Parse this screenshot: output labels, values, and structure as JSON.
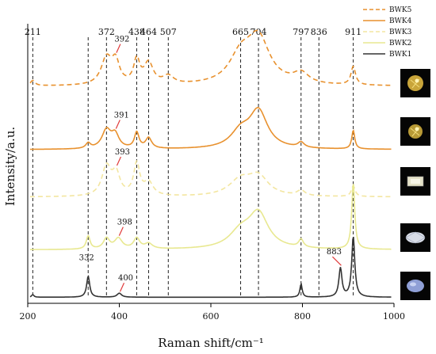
{
  "chart_data": {
    "type": "line",
    "xlabel": "Raman shift/cm⁻¹",
    "ylabel": "Intensity/a.u.",
    "xlim": [
      200,
      1000
    ],
    "x_ticks": [
      200,
      400,
      600,
      800,
      1000
    ],
    "grid": false,
    "legend_position": "top-right",
    "reference_lines": [
      211,
      332,
      372,
      438,
      464,
      507,
      665,
      704,
      797,
      836,
      911
    ],
    "top_labels": [
      "211",
      "372",
      "438",
      "464",
      "507",
      "665",
      "704",
      "797",
      "836",
      "911"
    ],
    "series": [
      {
        "name": "BWK5",
        "color": "#e8912e",
        "dash": true,
        "offset": 0.8,
        "peaks": [
          [
            211,
            0.02,
            6
          ],
          [
            372,
            0.1,
            14
          ],
          [
            392,
            0.08,
            10
          ],
          [
            438,
            0.09,
            8
          ],
          [
            464,
            0.08,
            12
          ],
          [
            507,
            0.03,
            14
          ],
          [
            665,
            0.1,
            30
          ],
          [
            704,
            0.17,
            30
          ],
          [
            797,
            0.04,
            20
          ],
          [
            911,
            0.07,
            6
          ]
        ],
        "callouts": [
          {
            "x": 392,
            "label": "392"
          }
        ]
      },
      {
        "name": "BWK4",
        "color": "#e8912e",
        "dash": false,
        "offset": 0.56,
        "peaks": [
          [
            332,
            0.02,
            6
          ],
          [
            372,
            0.07,
            12
          ],
          [
            391,
            0.05,
            10
          ],
          [
            438,
            0.06,
            6
          ],
          [
            464,
            0.04,
            8
          ],
          [
            665,
            0.06,
            26
          ],
          [
            704,
            0.14,
            24
          ],
          [
            797,
            0.02,
            8
          ],
          [
            911,
            0.07,
            4
          ]
        ],
        "callouts": [
          {
            "x": 391,
            "label": "391"
          }
        ]
      },
      {
        "name": "BWK3",
        "color": "#f3e6a0",
        "dash": true,
        "offset": 0.38,
        "peaks": [
          [
            372,
            0.11,
            12
          ],
          [
            393,
            0.08,
            10
          ],
          [
            438,
            0.12,
            8
          ],
          [
            464,
            0.05,
            12
          ],
          [
            665,
            0.06,
            30
          ],
          [
            704,
            0.07,
            26
          ],
          [
            797,
            0.02,
            10
          ],
          [
            911,
            0.04,
            5
          ]
        ],
        "callouts": [
          {
            "x": 393,
            "label": "393"
          }
        ]
      },
      {
        "name": "BWK2",
        "color": "#e8e890",
        "dash": false,
        "offset": 0.18,
        "peaks": [
          [
            332,
            0.05,
            5
          ],
          [
            372,
            0.04,
            8
          ],
          [
            398,
            0.04,
            10
          ],
          [
            438,
            0.04,
            8
          ],
          [
            464,
            0.02,
            10
          ],
          [
            665,
            0.06,
            30
          ],
          [
            704,
            0.13,
            26
          ],
          [
            797,
            0.03,
            6
          ],
          [
            911,
            0.25,
            4
          ]
        ],
        "callouts": [
          {
            "x": 398,
            "label": "398"
          }
        ]
      },
      {
        "name": "BWK1",
        "color": "#333333",
        "dash": false,
        "offset": 0.0,
        "peaks": [
          [
            211,
            0.01,
            3
          ],
          [
            332,
            0.08,
            4
          ],
          [
            400,
            0.015,
            6
          ],
          [
            797,
            0.05,
            3
          ],
          [
            883,
            0.11,
            4
          ],
          [
            911,
            0.23,
            4
          ]
        ],
        "callouts": [
          {
            "x": 332,
            "label": "332"
          },
          {
            "x": 400,
            "label": "400"
          },
          {
            "x": 883,
            "label": "883"
          }
        ]
      }
    ]
  },
  "legend": [
    {
      "label": "BWK5",
      "color": "#e8912e",
      "dash": true
    },
    {
      "label": "BWK4",
      "color": "#e8912e",
      "dash": false
    },
    {
      "label": "BWK3",
      "color": "#f3e6a0",
      "dash": true
    },
    {
      "label": "BWK2",
      "color": "#e8e890",
      "dash": false
    },
    {
      "label": "BWK1",
      "color": "#333333",
      "dash": false
    }
  ],
  "thumbnails": [
    {
      "name": "gem-thumbnail-bwk5",
      "gem_color": "#c9a53a"
    },
    {
      "name": "gem-thumbnail-bwk4",
      "gem_color": "#b89a36"
    },
    {
      "name": "gem-thumbnail-bwk3",
      "gem_color": "#e5e2c8"
    },
    {
      "name": "gem-thumbnail-bwk2",
      "gem_color": "#d8dce6"
    },
    {
      "name": "gem-thumbnail-bwk1",
      "gem_color": "#8f9fd6"
    }
  ]
}
